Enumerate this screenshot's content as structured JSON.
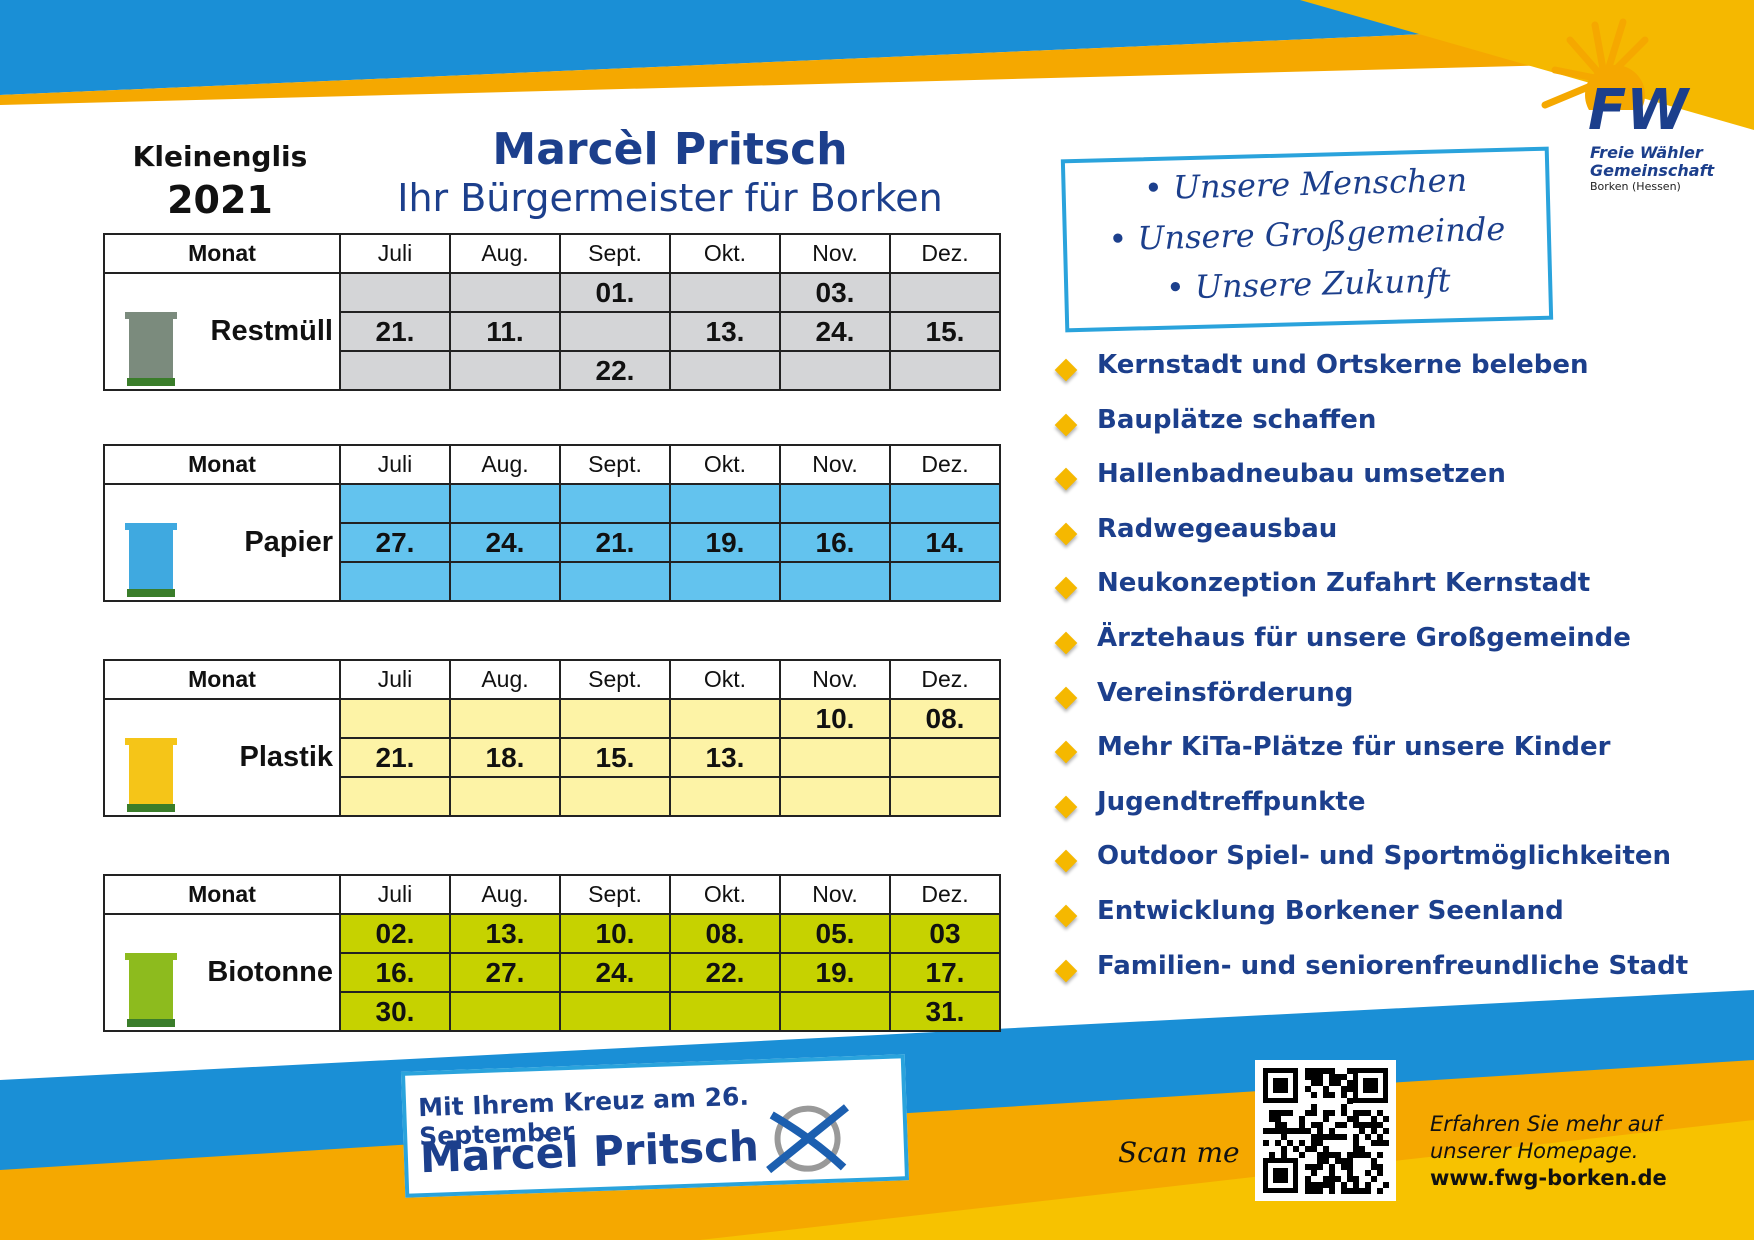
{
  "header": {
    "location": "Kleinenglis",
    "year": "2021",
    "title": "Marcèl Pritsch",
    "subtitle": "Ihr Bürgermeister für Borken"
  },
  "logo": {
    "mark": "FW",
    "line1": "Freie Wähler",
    "line2": "Gemeinschaft",
    "line3": "Borken (Hessen)"
  },
  "tables": [
    {
      "label": "Restmüll",
      "header": [
        "Monat",
        "Juli",
        "Aug.",
        "Sept.",
        "Okt.",
        "Nov.",
        "Dez."
      ],
      "rows": [
        [
          null,
          null,
          "01.",
          null,
          "03.",
          null
        ],
        [
          "21.",
          "11.",
          null,
          "13.",
          "24.",
          "15."
        ],
        [
          null,
          null,
          "22.",
          null,
          null,
          null
        ]
      ]
    },
    {
      "label": "Papier",
      "header": [
        "Monat",
        "Juli",
        "Aug.",
        "Sept.",
        "Okt.",
        "Nov.",
        "Dez."
      ],
      "rows": [
        [
          null,
          null,
          null,
          null,
          null,
          null
        ],
        [
          "27.",
          "24.",
          "21.",
          "19.",
          "16.",
          "14."
        ],
        [
          null,
          null,
          null,
          null,
          null,
          null
        ]
      ]
    },
    {
      "label": "Plastik",
      "header": [
        "Monat",
        "Juli",
        "Aug.",
        "Sept.",
        "Okt.",
        "Nov.",
        "Dez."
      ],
      "rows": [
        [
          null,
          null,
          null,
          null,
          "10.",
          "08."
        ],
        [
          "21.",
          "18.",
          "15.",
          "13.",
          null,
          null
        ],
        [
          null,
          null,
          null,
          null,
          null,
          null
        ]
      ]
    },
    {
      "label": "Biotonne",
      "header": [
        "Monat",
        "Juli",
        "Aug.",
        "Sept.",
        "Okt.",
        "Nov.",
        "Dez."
      ],
      "rows": [
        [
          "02.",
          "13.",
          "10.",
          "08.",
          "05.",
          "03"
        ],
        [
          "16.",
          "27.",
          "24.",
          "22.",
          "19.",
          "17."
        ],
        [
          "30.",
          null,
          null,
          null,
          null,
          "31."
        ]
      ]
    }
  ],
  "slogans": [
    "Unsere Menschen",
    "Unsere Großgemeinde",
    "Unsere Zukunft"
  ],
  "goals": [
    "Kernstadt und Ortskerne beleben",
    "Bauplätze schaffen",
    "Hallenbadneubau umsetzen",
    "Radwegeausbau",
    "Neukonzeption Zufahrt Kernstadt",
    "Ärztehaus für unsere Großgemeinde",
    "Vereinsförderung",
    "Mehr KiTa-Plätze für unsere Kinder",
    "Jugendtreffpunkte",
    "Outdoor Spiel- und Sportmöglichkeiten",
    "Entwicklung Borkener Seenland",
    "Familien- und seniorenfreundliche Stadt"
  ],
  "footer": {
    "vote_line": "Mit Ihrem Kreuz am 26. September",
    "vote_name": "Marcèl Pritsch",
    "scan": "Scan me",
    "info": [
      "Erfahren Sie mehr auf",
      "unserer Homepage.",
      "www.fwg-borken.de"
    ]
  }
}
